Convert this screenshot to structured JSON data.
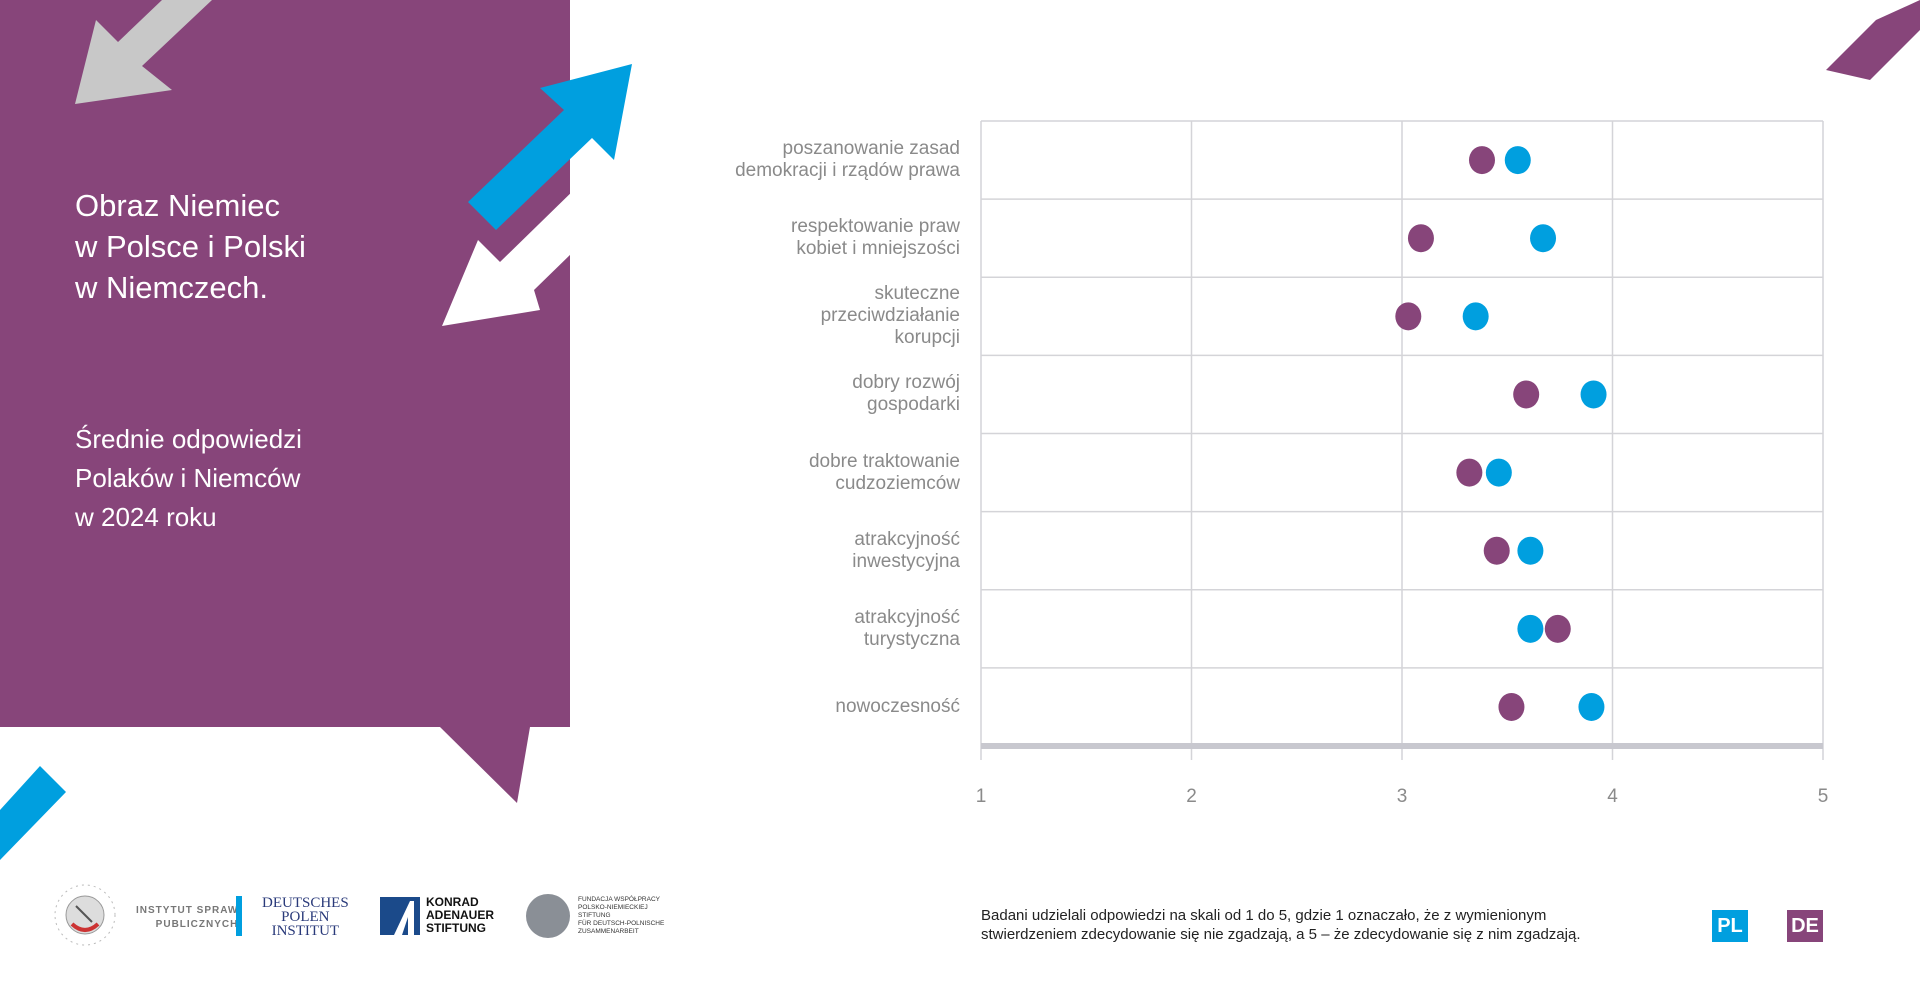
{
  "panel": {
    "title": "Obraz Niemiec\nw Polsce i Polski\nw Niemczech.",
    "subtitle": "Średnie odpowiedzi\nPolaków i Niemców\nw 2024 roku",
    "color": "#87457a"
  },
  "chart_data": {
    "type": "scatter",
    "orientation": "horizontal-dot-plot",
    "categories": [
      "poszanowanie zasad\ndemokracji i rządów prawa",
      "respektowanie praw\nkobiet i mniejszości",
      "skuteczne\nprzeciwdziałanie\nkorupcji",
      "dobry rozwój\ngospodarki",
      "dobre traktowanie\ncudzoziemców",
      "atrakcyjność\ninwestycyjna",
      "atrakcyjność\nturystyczna",
      "nowoczesność"
    ],
    "series": [
      {
        "name": "PL",
        "color": "#009fdf",
        "values": [
          3.55,
          3.67,
          3.35,
          3.91,
          3.46,
          3.61,
          3.61,
          3.9
        ]
      },
      {
        "name": "DE",
        "color": "#87457a",
        "values": [
          3.38,
          3.09,
          3.03,
          3.59,
          3.32,
          3.45,
          3.74,
          3.52
        ]
      }
    ],
    "xlim": [
      1,
      5
    ],
    "xticks": [
      "1",
      "2",
      "3",
      "4",
      "5"
    ],
    "grid": true,
    "legend": "bottom-right"
  },
  "footer": {
    "note": "Badani udzielali odpowiedzi na skali od 1 do 5, gdzie 1 oznaczało, że z wymienionym\nstwierdzeniem zdecydowanie się nie zgadzają, a 5 – że zdecydowanie się z nim zgadzają.",
    "legend_pl": "PL",
    "legend_de": "DE",
    "logos": {
      "isp": "INSTYTUT SPRAW\nPUBLICZNYCH",
      "dpi": "DEUTSCHES\nPOLEN\nINSTITUT",
      "kas": "KONRAD\nADENAUER\nSTIFTUNG",
      "fwpn": "FUNDACJA WSPÓŁPRACY\nPOLSKO-NIEMIECKIEJ\nSTIFTUNG\nFÜR DEUTSCH-POLNISCHE\nZUSAMMENARBEIT"
    }
  }
}
